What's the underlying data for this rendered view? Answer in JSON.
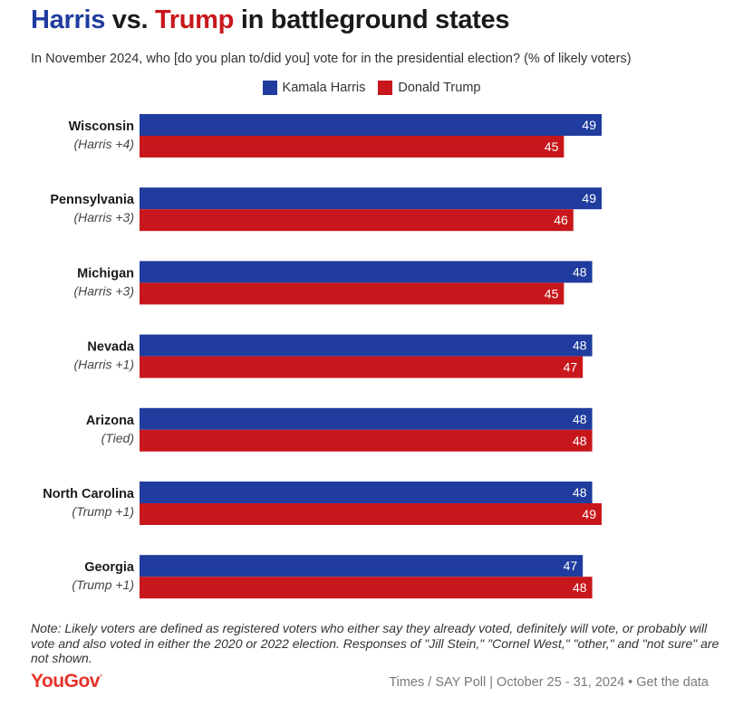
{
  "title": {
    "part1": "Harris",
    "part2": " vs. ",
    "part3": "Trump",
    "part4": " in battleground states"
  },
  "subtitle": "In November 2024, who [do you plan to/did you] vote for in the presidential election? (% of likely voters)",
  "colors": {
    "harris": "#1f3c9e",
    "trump": "#c8171c"
  },
  "chart_data": {
    "type": "bar",
    "orientation": "horizontal",
    "categories": [
      "Wisconsin",
      "Pennsylvania",
      "Michigan",
      "Nevada",
      "Arizona",
      "North Carolina",
      "Georgia"
    ],
    "sublabels": [
      "(Harris +4)",
      "(Harris +3)",
      "(Harris +3)",
      "(Harris +1)",
      "(Tied)",
      "(Trump +1)",
      "(Trump +1)"
    ],
    "series": [
      {
        "name": "Kamala Harris",
        "color": "#1f3c9e",
        "values": [
          49,
          49,
          48,
          48,
          48,
          48,
          47
        ]
      },
      {
        "name": "Donald Trump",
        "color": "#c8171c",
        "values": [
          45,
          46,
          45,
          47,
          48,
          49,
          48
        ]
      }
    ],
    "xlim": [
      0,
      49
    ],
    "legend_position": "top-center",
    "grid": false
  },
  "note": "Note: Likely voters are defined as registered voters who either say they already voted, definitely will vote, or probably will vote and also voted in either the 2020 or 2022 election. Responses of \"Jill Stein,\" \"Cornel West,\" \"other,\" and \"not sure\" are not shown.",
  "footer": {
    "logo": "YouGov",
    "source": "Times / SAY Poll | October 25 - 31, 2024",
    "separator": "•",
    "link": "Get the data"
  }
}
